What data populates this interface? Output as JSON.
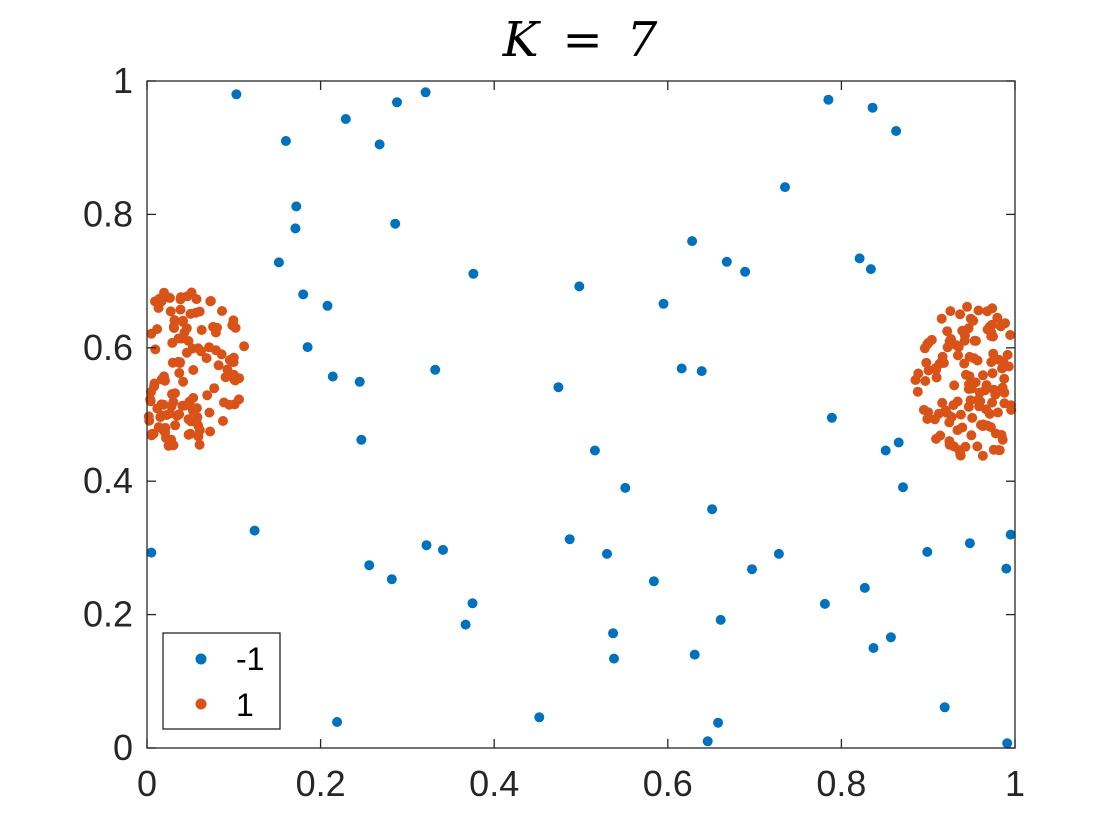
{
  "chart_data": {
    "type": "scatter",
    "title": "K = 7",
    "title_parts": {
      "var": "K",
      "eq": "=",
      "num": "7"
    },
    "xlabel": "",
    "ylabel": "",
    "xlim": [
      0,
      1
    ],
    "ylim": [
      0,
      1
    ],
    "x_ticks": [
      0,
      0.2,
      0.4,
      0.6,
      0.8,
      1
    ],
    "x_tick_labels": [
      "0",
      "0.2",
      "0.4",
      "0.6",
      "0.8",
      "1"
    ],
    "y_ticks": [
      0,
      0.2,
      0.4,
      0.6,
      0.8,
      1
    ],
    "y_tick_labels": [
      "0",
      "0.2",
      "0.4",
      "0.6",
      "0.8",
      "1"
    ],
    "grid": false,
    "legend_position": "bottom-left",
    "series": [
      {
        "name": "-1",
        "color": "#0072BD",
        "points": [
          [
            0.103,
            0.98
          ],
          [
            0.321,
            0.983
          ],
          [
            0.288,
            0.968
          ],
          [
            0.229,
            0.943
          ],
          [
            0.16,
            0.91
          ],
          [
            0.268,
            0.905
          ],
          [
            0.785,
            0.972
          ],
          [
            0.836,
            0.96
          ],
          [
            0.863,
            0.925
          ],
          [
            0.735,
            0.841
          ],
          [
            0.172,
            0.812
          ],
          [
            0.286,
            0.786
          ],
          [
            0.171,
            0.779
          ],
          [
            0.152,
            0.728
          ],
          [
            0.376,
            0.711
          ],
          [
            0.628,
            0.76
          ],
          [
            0.668,
            0.729
          ],
          [
            0.689,
            0.714
          ],
          [
            0.821,
            0.734
          ],
          [
            0.834,
            0.718
          ],
          [
            0.18,
            0.68
          ],
          [
            0.208,
            0.663
          ],
          [
            0.498,
            0.692
          ],
          [
            0.595,
            0.666
          ],
          [
            0.185,
            0.601
          ],
          [
            0.214,
            0.557
          ],
          [
            0.245,
            0.549
          ],
          [
            0.332,
            0.567
          ],
          [
            0.474,
            0.541
          ],
          [
            0.616,
            0.569
          ],
          [
            0.639,
            0.565
          ],
          [
            0.789,
            0.495
          ],
          [
            0.247,
            0.462
          ],
          [
            0.516,
            0.446
          ],
          [
            0.551,
            0.39
          ],
          [
            0.651,
            0.358
          ],
          [
            0.851,
            0.446
          ],
          [
            0.866,
            0.458
          ],
          [
            0.871,
            0.391
          ],
          [
            0.005,
            0.293
          ],
          [
            0.124,
            0.326
          ],
          [
            0.322,
            0.304
          ],
          [
            0.341,
            0.297
          ],
          [
            0.487,
            0.313
          ],
          [
            0.53,
            0.291
          ],
          [
            0.728,
            0.291
          ],
          [
            0.899,
            0.294
          ],
          [
            0.948,
            0.307
          ],
          [
            0.995,
            0.32
          ],
          [
            0.256,
            0.274
          ],
          [
            0.282,
            0.253
          ],
          [
            0.584,
            0.25
          ],
          [
            0.697,
            0.268
          ],
          [
            0.99,
            0.269
          ],
          [
            0.375,
            0.217
          ],
          [
            0.367,
            0.185
          ],
          [
            0.781,
            0.216
          ],
          [
            0.827,
            0.24
          ],
          [
            0.661,
            0.192
          ],
          [
            0.537,
            0.172
          ],
          [
            0.538,
            0.134
          ],
          [
            0.631,
            0.14
          ],
          [
            0.837,
            0.15
          ],
          [
            0.857,
            0.166
          ],
          [
            0.219,
            0.039
          ],
          [
            0.452,
            0.046
          ],
          [
            0.658,
            0.038
          ],
          [
            0.646,
            0.01
          ],
          [
            0.919,
            0.061
          ],
          [
            0.991,
            0.007
          ]
        ]
      },
      {
        "name": "1",
        "color": "#D95319",
        "center_left": [
          0.04,
          0.57
        ],
        "center_right": [
          0.96,
          0.55
        ],
        "approx_points_per_cluster": 130
      }
    ]
  }
}
